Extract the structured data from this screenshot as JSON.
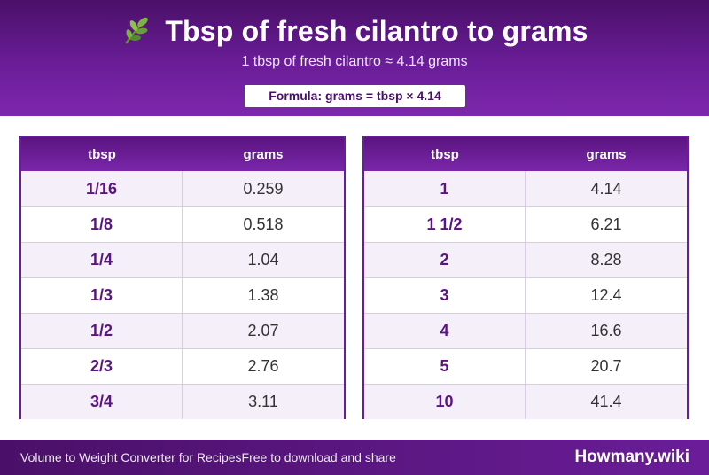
{
  "header": {
    "title": "Tbsp of fresh cilantro to grams",
    "subtitle": "1 tbsp of fresh cilantro ≈ 4.14 grams",
    "formula": "Formula: grams = tbsp × 4.14"
  },
  "tables": [
    {
      "headers": {
        "tbsp": "tbsp",
        "grams": "grams"
      },
      "rows": [
        {
          "tbsp": "1/16",
          "grams": "0.259"
        },
        {
          "tbsp": "1/8",
          "grams": "0.518"
        },
        {
          "tbsp": "1/4",
          "grams": "1.04"
        },
        {
          "tbsp": "1/3",
          "grams": "1.38"
        },
        {
          "tbsp": "1/2",
          "grams": "2.07"
        },
        {
          "tbsp": "2/3",
          "grams": "2.76"
        },
        {
          "tbsp": "3/4",
          "grams": "3.11"
        }
      ]
    },
    {
      "headers": {
        "tbsp": "tbsp",
        "grams": "grams"
      },
      "rows": [
        {
          "tbsp": "1",
          "grams": "4.14"
        },
        {
          "tbsp": "1 1/2",
          "grams": "6.21"
        },
        {
          "tbsp": "2",
          "grams": "8.28"
        },
        {
          "tbsp": "3",
          "grams": "12.4"
        },
        {
          "tbsp": "4",
          "grams": "16.6"
        },
        {
          "tbsp": "5",
          "grams": "20.7"
        },
        {
          "tbsp": "10",
          "grams": "41.4"
        }
      ]
    }
  ],
  "footer": {
    "left_text": "Volume to Weight Converter for RecipesFree to download and share",
    "brand": "Howmany.wiki"
  },
  "icons": {
    "title_icon": "herb-leaf-icon"
  },
  "colors": {
    "brand_purple": "#6a1d98",
    "dark_purple": "#4a1068",
    "row_alt": "#f4eff8"
  }
}
